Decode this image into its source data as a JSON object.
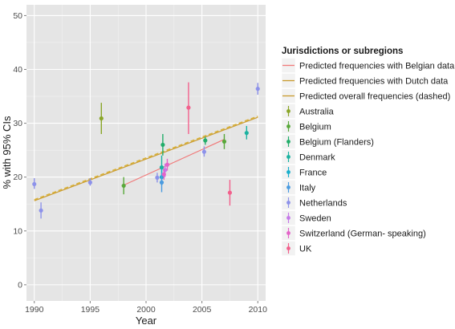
{
  "chart_data": {
    "type": "scatter",
    "xlabel": "Year",
    "ylabel": "% with 95% CIs",
    "xlim": [
      1989.3,
      2010.7
    ],
    "ylim": [
      -3,
      52
    ],
    "x_ticks": [
      1990,
      1995,
      2000,
      2005,
      2010
    ],
    "y_ticks": [
      0,
      10,
      20,
      30,
      40,
      50
    ],
    "grid": true,
    "legend_position": "right",
    "legend_title": "Jurisdictions or subregions",
    "lines": [
      {
        "name": "Predicted frequencies with Belgian data",
        "color": "#f07a7a",
        "dash": "solid",
        "x": [
          1998,
          2007
        ],
        "y": [
          18.5,
          27.0
        ]
      },
      {
        "name": "Predicted frequencies with Dutch data",
        "color": "#c99a2e",
        "dash": "solid",
        "x": [
          1990,
          2010
        ],
        "y": [
          15.6,
          31.1
        ]
      },
      {
        "name": "Predicted overall frequencies (dashed)",
        "color": "#c99a2e",
        "dash": "dashed",
        "x": [
          1990,
          2010
        ],
        "y": [
          15.8,
          31.3
        ]
      }
    ],
    "series": [
      {
        "name": "Australia",
        "color": "#8aa628",
        "points": [
          {
            "x": 1996,
            "y": 30.9,
            "lo": 28.0,
            "hi": 33.8
          }
        ]
      },
      {
        "name": "Belgium",
        "color": "#58a83a",
        "points": [
          {
            "x": 1998,
            "y": 18.4,
            "lo": 16.8,
            "hi": 20.0
          },
          {
            "x": 2007,
            "y": 26.6,
            "lo": 25.2,
            "hi": 28.0
          }
        ]
      },
      {
        "name": "Belgium (Flanders)",
        "color": "#22ad6a",
        "points": [
          {
            "x": 2001.5,
            "y": 26.0,
            "lo": 24.0,
            "hi": 28.0
          },
          {
            "x": 2005.3,
            "y": 26.8,
            "lo": 26.0,
            "hi": 27.5
          }
        ]
      },
      {
        "name": "Denmark",
        "color": "#1bb2a0",
        "points": [
          {
            "x": 2001.4,
            "y": 21.8,
            "lo": 19.5,
            "hi": 24.0
          },
          {
            "x": 2009,
            "y": 28.2,
            "lo": 27.0,
            "hi": 29.5
          }
        ]
      },
      {
        "name": "France",
        "color": "#1aafcc",
        "points": [
          {
            "x": 2001.4,
            "y": 20.0,
            "lo": 18.5,
            "hi": 21.5
          }
        ]
      },
      {
        "name": "Italy",
        "color": "#4a9be0",
        "points": [
          {
            "x": 2001.4,
            "y": 19.0,
            "lo": 17.2,
            "hi": 20.8
          }
        ]
      },
      {
        "name": "Netherlands",
        "color": "#8d92ea",
        "points": [
          {
            "x": 1990,
            "y": 18.7,
            "lo": 17.8,
            "hi": 19.8
          },
          {
            "x": 1990.6,
            "y": 13.8,
            "lo": 12.3,
            "hi": 15.3
          },
          {
            "x": 1995,
            "y": 19.0,
            "lo": 18.4,
            "hi": 19.8
          },
          {
            "x": 2001,
            "y": 19.9,
            "lo": 19.0,
            "hi": 20.8
          },
          {
            "x": 2005.2,
            "y": 24.7,
            "lo": 23.8,
            "hi": 25.7
          },
          {
            "x": 2010,
            "y": 36.4,
            "lo": 35.3,
            "hi": 37.5
          }
        ]
      },
      {
        "name": "Sweden",
        "color": "#c57ae8",
        "points": [
          {
            "x": 2001.7,
            "y": 21.3,
            "lo": 20.0,
            "hi": 22.5
          }
        ]
      },
      {
        "name": "Switzerland (German- speaking)",
        "color": "#e463c9",
        "points": [
          {
            "x": 2001.6,
            "y": 20.5,
            "lo": 19.5,
            "hi": 21.6
          },
          {
            "x": 2001.9,
            "y": 22.3,
            "lo": 21.2,
            "hi": 23.4
          }
        ]
      },
      {
        "name": "UK",
        "color": "#f2608c",
        "points": [
          {
            "x": 2003.8,
            "y": 32.9,
            "lo": 28.0,
            "hi": 37.6
          },
          {
            "x": 2007.5,
            "y": 17.1,
            "lo": 14.7,
            "hi": 19.5
          }
        ]
      }
    ]
  }
}
